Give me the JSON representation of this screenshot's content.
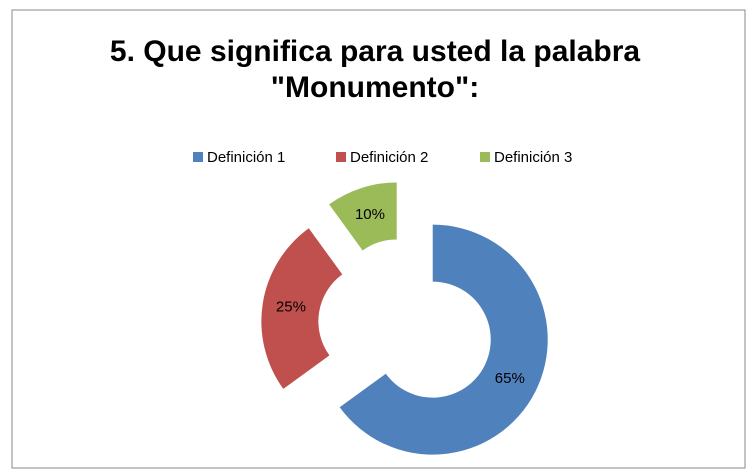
{
  "chart_data": {
    "type": "donut",
    "title": "5. Que significa para usted la palabra \"Monumento\":",
    "categories": [
      "Definición 1",
      "Definición 2",
      "Definición 3"
    ],
    "values": [
      65,
      25,
      10
    ],
    "value_labels": [
      "65%",
      "25%",
      "10%"
    ],
    "colors": [
      "#4f81bd",
      "#c0504d",
      "#9bbb59"
    ],
    "legend": "top"
  }
}
